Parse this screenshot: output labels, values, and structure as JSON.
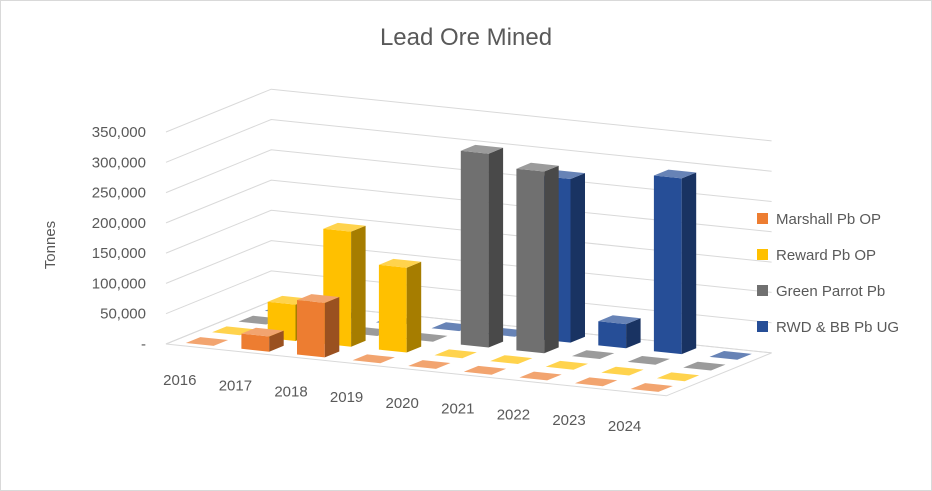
{
  "chart_data": {
    "type": "bar",
    "title": "Lead Ore Mined",
    "ylabel": "Tonnes",
    "xlabel": "",
    "categories": [
      "2016",
      "2017",
      "2018",
      "2019",
      "2020",
      "2021",
      "2022",
      "2023",
      "2024"
    ],
    "yticks": [
      "-",
      "50,000",
      "100,000",
      "150,000",
      "200,000",
      "250,000",
      "300,000",
      "350,000"
    ],
    "ylim": [
      0,
      350000
    ],
    "legend_position": "right",
    "grid": true,
    "projection": "3d-column",
    "series": [
      {
        "name": "Marshall Pb OP",
        "color": "#ED7D31",
        "values": [
          0,
          25000,
          90000,
          0,
          0,
          0,
          0,
          0,
          0
        ]
      },
      {
        "name": "Reward Pb OP",
        "color": "#FFC000",
        "values": [
          0,
          60000,
          190000,
          140000,
          0,
          0,
          0,
          0,
          0
        ]
      },
      {
        "name": "Green Parrot Pb",
        "color": "#707070",
        "values": [
          0,
          0,
          0,
          0,
          320000,
          300000,
          0,
          0,
          0
        ]
      },
      {
        "name": "RWD & BB Pb UG",
        "color": "#264E97",
        "values": [
          0,
          0,
          0,
          0,
          0,
          270000,
          40000,
          290000,
          0
        ]
      }
    ]
  }
}
